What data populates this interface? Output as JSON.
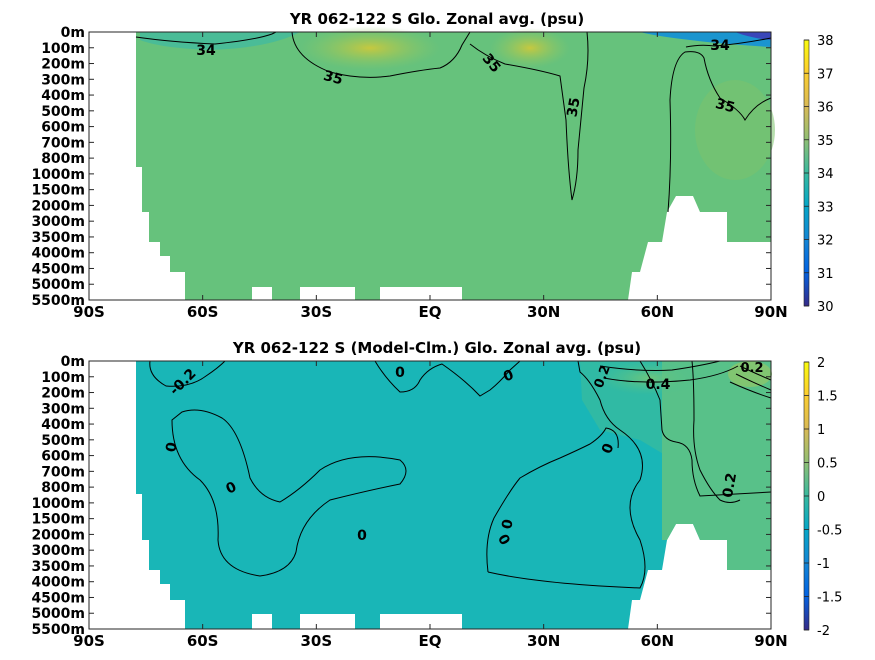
{
  "chart_data": [
    {
      "type": "heatmap",
      "title": "YR 062-122 S Glo. Zonal avg. (psu)",
      "x_ticks": [
        "90S",
        "60S",
        "30S",
        "EQ",
        "30N",
        "60N",
        "90N"
      ],
      "x_values": [
        -90,
        -60,
        -30,
        0,
        30,
        60,
        90
      ],
      "y_ticks": [
        "0m",
        "100m",
        "200m",
        "300m",
        "400m",
        "500m",
        "600m",
        "700m",
        "800m",
        "1000m",
        "1500m",
        "2000m",
        "3000m",
        "3500m",
        "4000m",
        "4500m",
        "5000m",
        "5500m"
      ],
      "colorbar": {
        "min": 30,
        "max": 38,
        "ticks": [
          30,
          31,
          32,
          33,
          34,
          35,
          36,
          37,
          38
        ]
      },
      "contour_labels": [
        "34",
        "35",
        "35",
        "35",
        "34",
        "35"
      ],
      "colormap": "parula"
    },
    {
      "type": "heatmap",
      "title": "YR 062-122 S (Model-Clm.) Glo. Zonal avg. (psu)",
      "x_ticks": [
        "90S",
        "60S",
        "30S",
        "EQ",
        "30N",
        "60N",
        "90N"
      ],
      "x_values": [
        -90,
        -60,
        -30,
        0,
        30,
        60,
        90
      ],
      "y_ticks": [
        "0m",
        "100m",
        "200m",
        "300m",
        "400m",
        "500m",
        "600m",
        "700m",
        "800m",
        "1000m",
        "1500m",
        "2000m",
        "3000m",
        "3500m",
        "4000m",
        "4500m",
        "5000m",
        "5500m"
      ],
      "colorbar": {
        "min": -2,
        "max": 2,
        "ticks": [
          -2,
          -1.5,
          -1,
          -0.5,
          0,
          0.5,
          1,
          1.5,
          2
        ]
      },
      "contour_labels": [
        "-0.2",
        "0",
        "0",
        "0",
        "0",
        "0",
        "0",
        "0",
        "0",
        "0.4",
        "0.2",
        "0.2",
        "0.2"
      ],
      "colormap": "parula"
    }
  ]
}
